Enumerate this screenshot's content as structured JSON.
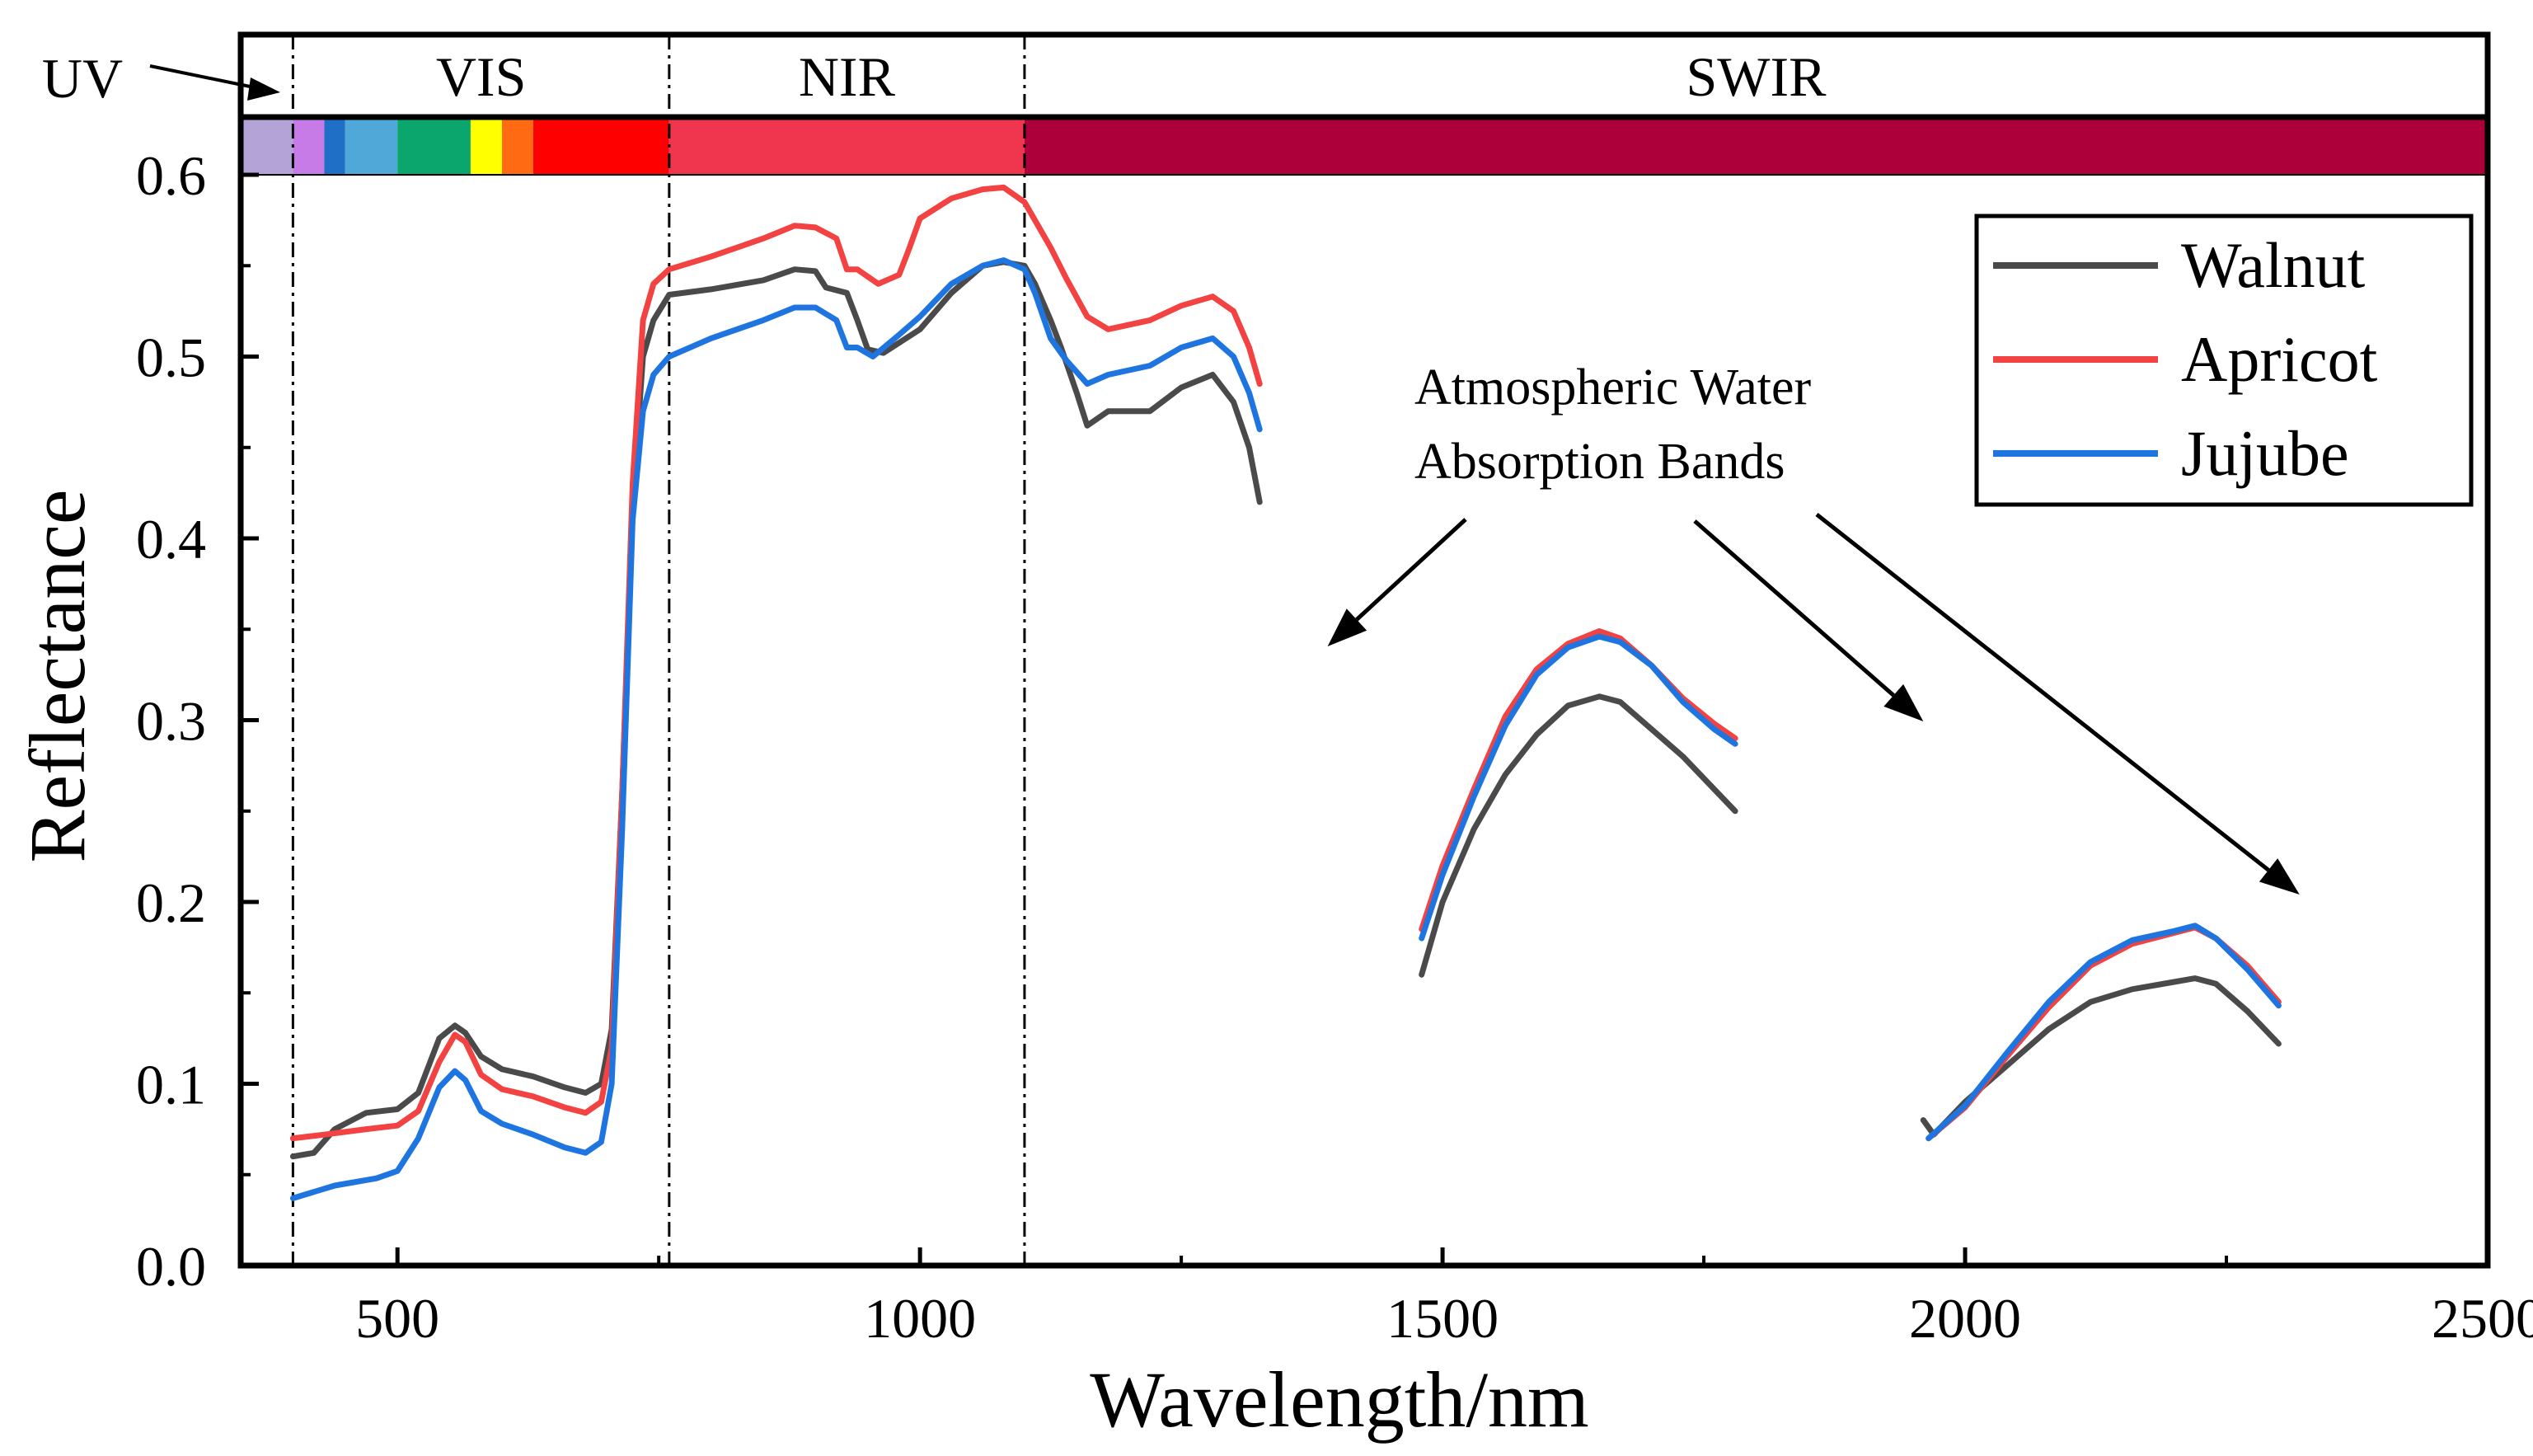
{
  "chart_data": {
    "type": "line",
    "xlabel": "Wavelength/nm",
    "ylabel": "Reflectance",
    "xlim": [
      350,
      2500
    ],
    "ylim": [
      0,
      0.6
    ],
    "x_ticks": [
      500,
      1000,
      1500,
      2000,
      2500
    ],
    "y_ticks": [
      0.0,
      0.1,
      0.2,
      0.3,
      0.4,
      0.5,
      0.6
    ],
    "y_tick_labels": [
      "0.0",
      "0.1",
      "0.2",
      "0.3",
      "0.4",
      "0.5",
      "0.6"
    ],
    "legend_position": "top-right",
    "regions": [
      {
        "name": "UV",
        "from": 350,
        "to": 400
      },
      {
        "name": "VIS",
        "from": 400,
        "to": 760
      },
      {
        "name": "NIR",
        "from": 760,
        "to": 1100
      },
      {
        "name": "SWIR",
        "from": 1100,
        "to": 2500
      }
    ],
    "band_boundaries": [
      400,
      760,
      1100
    ],
    "spectrum_bar": [
      {
        "from": 350,
        "to": 400,
        "color": "#B3A3D6"
      },
      {
        "from": 400,
        "to": 430,
        "color": "#C77BE6"
      },
      {
        "from": 430,
        "to": 450,
        "color": "#1F6FC6"
      },
      {
        "from": 450,
        "to": 500,
        "color": "#4FA8D8"
      },
      {
        "from": 500,
        "to": 570,
        "color": "#0AA66E"
      },
      {
        "from": 570,
        "to": 600,
        "color": "#FFFF00"
      },
      {
        "from": 600,
        "to": 630,
        "color": "#FF6A13"
      },
      {
        "from": 630,
        "to": 760,
        "color": "#FF0000"
      },
      {
        "from": 760,
        "to": 1100,
        "color": "#F0364E"
      },
      {
        "from": 1100,
        "to": 2500,
        "color": "#AD003A"
      }
    ],
    "annotation": {
      "lines": [
        "Atmospheric Water",
        "Absorption Bands"
      ],
      "arrow_targets_wavelength": [
        1390,
        1960,
        2320
      ]
    },
    "series": [
      {
        "name": "Walnut",
        "color": "#4a4a4a",
        "segments": [
          [
            [
              400,
              0.06
            ],
            [
              420,
              0.062
            ],
            [
              440,
              0.075
            ],
            [
              470,
              0.084
            ],
            [
              500,
              0.086
            ],
            [
              520,
              0.095
            ],
            [
              540,
              0.125
            ],
            [
              555,
              0.132
            ],
            [
              565,
              0.128
            ],
            [
              580,
              0.115
            ],
            [
              600,
              0.108
            ],
            [
              630,
              0.104
            ],
            [
              660,
              0.098
            ],
            [
              680,
              0.095
            ],
            [
              695,
              0.1
            ],
            [
              705,
              0.13
            ],
            [
              715,
              0.26
            ],
            [
              725,
              0.42
            ],
            [
              735,
              0.5
            ],
            [
              745,
              0.52
            ],
            [
              760,
              0.534
            ],
            [
              800,
              0.537
            ],
            [
              850,
              0.542
            ],
            [
              880,
              0.548
            ],
            [
              900,
              0.547
            ],
            [
              910,
              0.538
            ],
            [
              930,
              0.535
            ],
            [
              940,
              0.52
            ],
            [
              950,
              0.504
            ],
            [
              965,
              0.502
            ],
            [
              1000,
              0.515
            ],
            [
              1030,
              0.535
            ],
            [
              1060,
              0.55
            ],
            [
              1080,
              0.552
            ],
            [
              1100,
              0.55
            ],
            [
              1110,
              0.54
            ],
            [
              1125,
              0.52
            ],
            [
              1135,
              0.505
            ],
            [
              1150,
              0.48
            ],
            [
              1160,
              0.462
            ],
            [
              1180,
              0.47
            ],
            [
              1220,
              0.47
            ],
            [
              1250,
              0.483
            ],
            [
              1280,
              0.49
            ],
            [
              1300,
              0.475
            ],
            [
              1315,
              0.45
            ],
            [
              1325,
              0.42
            ]
          ],
          [
            [
              1480,
              0.16
            ],
            [
              1500,
              0.2
            ],
            [
              1530,
              0.24
            ],
            [
              1560,
              0.27
            ],
            [
              1590,
              0.292
            ],
            [
              1620,
              0.308
            ],
            [
              1650,
              0.313
            ],
            [
              1670,
              0.31
            ],
            [
              1700,
              0.295
            ],
            [
              1730,
              0.28
            ],
            [
              1760,
              0.262
            ],
            [
              1780,
              0.25
            ]
          ],
          [
            [
              1960,
              0.08
            ],
            [
              1970,
              0.072
            ],
            [
              2000,
              0.09
            ],
            [
              2040,
              0.11
            ],
            [
              2080,
              0.13
            ],
            [
              2120,
              0.145
            ],
            [
              2160,
              0.152
            ],
            [
              2200,
              0.156
            ],
            [
              2220,
              0.158
            ],
            [
              2240,
              0.155
            ],
            [
              2270,
              0.14
            ],
            [
              2300,
              0.122
            ]
          ]
        ]
      },
      {
        "name": "Apricot",
        "color": "#f24242",
        "segments": [
          [
            [
              400,
              0.07
            ],
            [
              430,
              0.072
            ],
            [
              470,
              0.075
            ],
            [
              500,
              0.077
            ],
            [
              520,
              0.085
            ],
            [
              540,
              0.112
            ],
            [
              555,
              0.127
            ],
            [
              565,
              0.123
            ],
            [
              580,
              0.105
            ],
            [
              600,
              0.097
            ],
            [
              630,
              0.093
            ],
            [
              660,
              0.087
            ],
            [
              680,
              0.084
            ],
            [
              695,
              0.09
            ],
            [
              705,
              0.12
            ],
            [
              715,
              0.26
            ],
            [
              725,
              0.43
            ],
            [
              735,
              0.52
            ],
            [
              745,
              0.54
            ],
            [
              760,
              0.548
            ],
            [
              800,
              0.555
            ],
            [
              850,
              0.565
            ],
            [
              880,
              0.572
            ],
            [
              900,
              0.571
            ],
            [
              920,
              0.565
            ],
            [
              930,
              0.548
            ],
            [
              940,
              0.548
            ],
            [
              960,
              0.54
            ],
            [
              980,
              0.545
            ],
            [
              990,
              0.56
            ],
            [
              1000,
              0.576
            ],
            [
              1030,
              0.587
            ],
            [
              1060,
              0.592
            ],
            [
              1080,
              0.593
            ],
            [
              1100,
              0.585
            ],
            [
              1110,
              0.575
            ],
            [
              1125,
              0.56
            ],
            [
              1140,
              0.543
            ],
            [
              1160,
              0.522
            ],
            [
              1180,
              0.515
            ],
            [
              1220,
              0.52
            ],
            [
              1250,
              0.528
            ],
            [
              1280,
              0.533
            ],
            [
              1300,
              0.525
            ],
            [
              1315,
              0.505
            ],
            [
              1325,
              0.485
            ]
          ],
          [
            [
              1480,
              0.185
            ],
            [
              1500,
              0.22
            ],
            [
              1530,
              0.262
            ],
            [
              1560,
              0.302
            ],
            [
              1590,
              0.328
            ],
            [
              1620,
              0.342
            ],
            [
              1650,
              0.349
            ],
            [
              1670,
              0.345
            ],
            [
              1700,
              0.33
            ],
            [
              1730,
              0.312
            ],
            [
              1760,
              0.298
            ],
            [
              1780,
              0.29
            ]
          ],
          [
            [
              1965,
              0.07
            ],
            [
              2000,
              0.087
            ],
            [
              2040,
              0.115
            ],
            [
              2080,
              0.142
            ],
            [
              2120,
              0.165
            ],
            [
              2160,
              0.177
            ],
            [
              2200,
              0.183
            ],
            [
              2220,
              0.186
            ],
            [
              2240,
              0.18
            ],
            [
              2270,
              0.165
            ],
            [
              2300,
              0.145
            ]
          ]
        ]
      },
      {
        "name": "Jujube",
        "color": "#1f75e0",
        "segments": [
          [
            [
              400,
              0.037
            ],
            [
              440,
              0.044
            ],
            [
              480,
              0.048
            ],
            [
              500,
              0.052
            ],
            [
              520,
              0.07
            ],
            [
              540,
              0.098
            ],
            [
              555,
              0.107
            ],
            [
              565,
              0.102
            ],
            [
              580,
              0.085
            ],
            [
              600,
              0.078
            ],
            [
              630,
              0.072
            ],
            [
              660,
              0.065
            ],
            [
              680,
              0.062
            ],
            [
              695,
              0.068
            ],
            [
              705,
              0.1
            ],
            [
              715,
              0.24
            ],
            [
              725,
              0.41
            ],
            [
              735,
              0.47
            ],
            [
              745,
              0.49
            ],
            [
              760,
              0.5
            ],
            [
              800,
              0.51
            ],
            [
              850,
              0.52
            ],
            [
              880,
              0.527
            ],
            [
              900,
              0.527
            ],
            [
              920,
              0.52
            ],
            [
              930,
              0.505
            ],
            [
              940,
              0.505
            ],
            [
              955,
              0.5
            ],
            [
              980,
              0.512
            ],
            [
              1000,
              0.522
            ],
            [
              1030,
              0.54
            ],
            [
              1060,
              0.55
            ],
            [
              1080,
              0.553
            ],
            [
              1100,
              0.548
            ],
            [
              1110,
              0.535
            ],
            [
              1125,
              0.51
            ],
            [
              1140,
              0.498
            ],
            [
              1160,
              0.485
            ],
            [
              1180,
              0.49
            ],
            [
              1220,
              0.495
            ],
            [
              1250,
              0.505
            ],
            [
              1280,
              0.51
            ],
            [
              1300,
              0.5
            ],
            [
              1315,
              0.48
            ],
            [
              1325,
              0.46
            ]
          ],
          [
            [
              1480,
              0.18
            ],
            [
              1500,
              0.215
            ],
            [
              1530,
              0.258
            ],
            [
              1560,
              0.297
            ],
            [
              1590,
              0.325
            ],
            [
              1620,
              0.34
            ],
            [
              1650,
              0.346
            ],
            [
              1670,
              0.343
            ],
            [
              1700,
              0.33
            ],
            [
              1730,
              0.31
            ],
            [
              1760,
              0.295
            ],
            [
              1780,
              0.287
            ]
          ],
          [
            [
              1965,
              0.07
            ],
            [
              2000,
              0.088
            ],
            [
              2040,
              0.117
            ],
            [
              2080,
              0.145
            ],
            [
              2120,
              0.167
            ],
            [
              2160,
              0.179
            ],
            [
              2200,
              0.184
            ],
            [
              2220,
              0.187
            ],
            [
              2240,
              0.18
            ],
            [
              2270,
              0.163
            ],
            [
              2300,
              0.143
            ]
          ]
        ]
      }
    ]
  }
}
